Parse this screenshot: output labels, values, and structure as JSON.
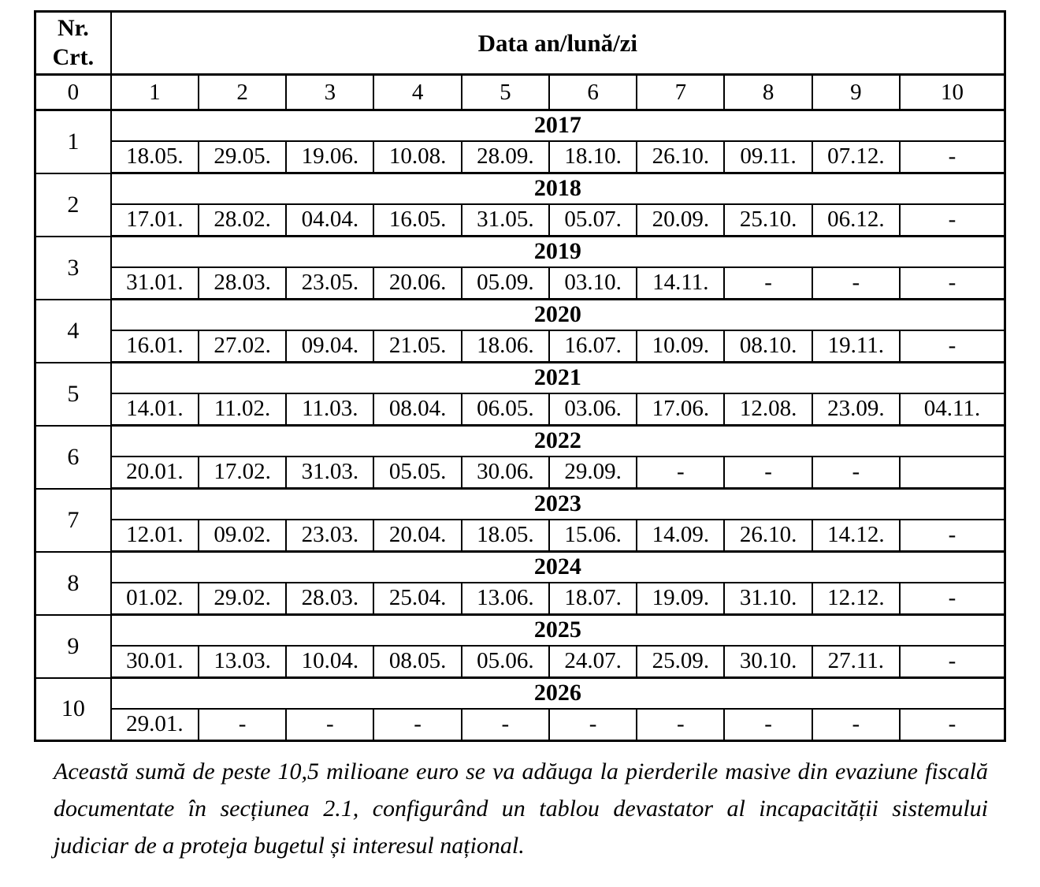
{
  "table": {
    "corner_header": "Nr.\nCrt.",
    "data_header": "Data an/lună/zi",
    "column_numbers": [
      "0",
      "1",
      "2",
      "3",
      "4",
      "5",
      "6",
      "7",
      "8",
      "9",
      "10"
    ],
    "rows": [
      {
        "nr": "1",
        "year": "2017",
        "dates": [
          "18.05.",
          "29.05.",
          "19.06.",
          "10.08.",
          "28.09.",
          "18.10.",
          "26.10.",
          "09.11.",
          "07.12.",
          "-"
        ]
      },
      {
        "nr": "2",
        "year": "2018",
        "dates": [
          "17.01.",
          "28.02.",
          "04.04.",
          "16.05.",
          "31.05.",
          "05.07.",
          "20.09.",
          "25.10.",
          "06.12.",
          "-"
        ]
      },
      {
        "nr": "3",
        "year": "2019",
        "dates": [
          "31.01.",
          "28.03.",
          "23.05.",
          "20.06.",
          "05.09.",
          "03.10.",
          "14.11.",
          "-",
          "-",
          "-"
        ]
      },
      {
        "nr": "4",
        "year": "2020",
        "dates": [
          "16.01.",
          "27.02.",
          "09.04.",
          "21.05.",
          "18.06.",
          "16.07.",
          "10.09.",
          "08.10.",
          "19.11.",
          "-"
        ]
      },
      {
        "nr": "5",
        "year": "2021",
        "dates": [
          "14.01.",
          "11.02.",
          "11.03.",
          "08.04.",
          "06.05.",
          "03.06.",
          "17.06.",
          "12.08.",
          "23.09.",
          "04.11."
        ]
      },
      {
        "nr": "6",
        "year": "2022",
        "dates": [
          "20.01.",
          "17.02.",
          "31.03.",
          "05.05.",
          "30.06.",
          "29.09.",
          "-",
          "-",
          "-",
          ""
        ]
      },
      {
        "nr": "7",
        "year": "2023",
        "dates": [
          "12.01.",
          "09.02.",
          "23.03.",
          "20.04.",
          "18.05.",
          "15.06.",
          "14.09.",
          "26.10.",
          "14.12.",
          "-"
        ]
      },
      {
        "nr": "8",
        "year": "2024",
        "dates": [
          "01.02.",
          "29.02.",
          "28.03.",
          "25.04.",
          "13.06.",
          "18.07.",
          "19.09.",
          "31.10.",
          "12.12.",
          "-"
        ]
      },
      {
        "nr": "9",
        "year": "2025",
        "dates": [
          "30.01.",
          "13.03.",
          "10.04.",
          "08.05.",
          "05.06.",
          "24.07.",
          "25.09.",
          "30.10.",
          "27.11.",
          "-"
        ]
      },
      {
        "nr": "10",
        "year": "2026",
        "dates": [
          "29.01.",
          "-",
          "-",
          "-",
          "-",
          "-",
          "-",
          "-",
          "-",
          "-"
        ]
      }
    ]
  },
  "footer": {
    "text": "Această sumă de peste 10,5 milioane euro se va adăuga la pierderile masive din evaziune fiscală documentate în secțiunea 2.1, configurând un tablou devastator al incapacității sistemului judiciar de a proteja bugetul și interesul național."
  }
}
